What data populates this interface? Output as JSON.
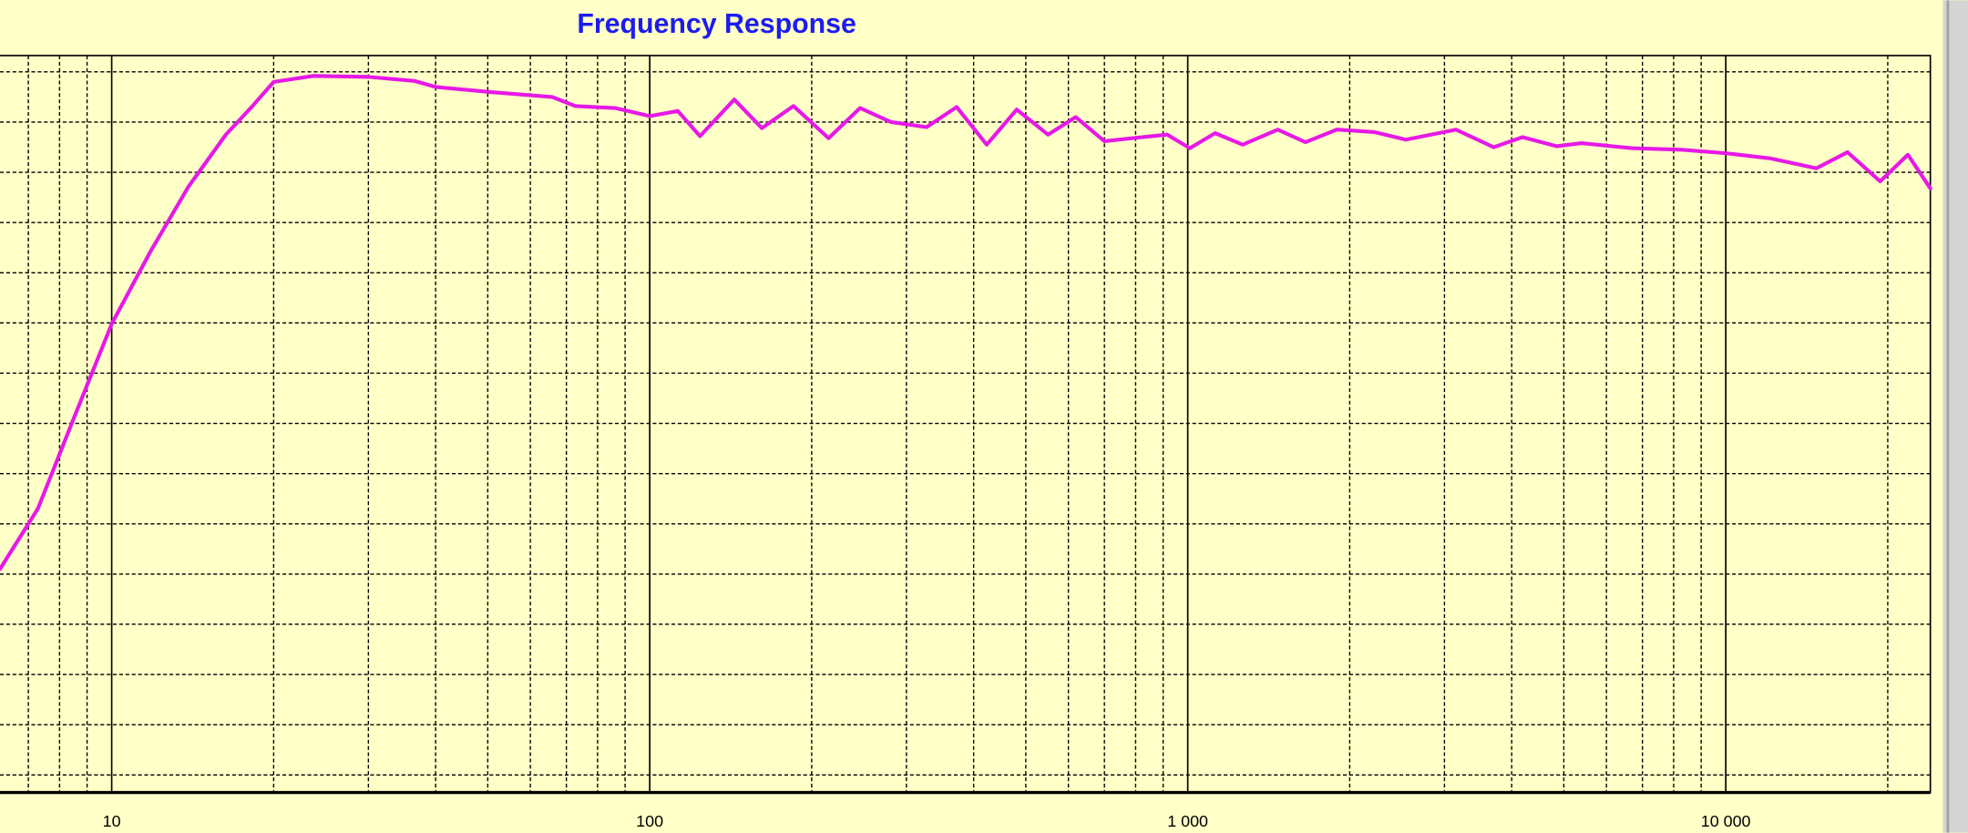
{
  "chart_data": {
    "type": "line",
    "title": "Frequency Response",
    "log_x": true,
    "grid": true,
    "background": "#ffffc8",
    "xlim": [
      6.2,
      24000
    ],
    "xticks": [
      10,
      100,
      {
        "value": 1000,
        "label": "1 000"
      },
      {
        "value": 10000,
        "label": "10 000"
      }
    ],
    "xminor": [
      7,
      8,
      9,
      20,
      30,
      40,
      50,
      60,
      70,
      80,
      90,
      200,
      300,
      400,
      500,
      600,
      700,
      800,
      900,
      2000,
      3000,
      4000,
      5000,
      6000,
      7000,
      8000,
      9000,
      20000
    ],
    "ylim": [
      28.25,
      101.625
    ],
    "ygrid": [
      30,
      35,
      40,
      45,
      50,
      55,
      60,
      65,
      70,
      75,
      80,
      85,
      90,
      95,
      100
    ],
    "x": [
      6.2,
      7.29,
      8.56,
      10,
      11.8,
      13.9,
      16.3,
      18.2,
      20,
      23.7,
      30,
      36.5,
      40,
      50.4,
      65.9,
      72.7,
      86.2,
      100,
      112.8,
      124,
      143.6,
      161.6,
      185,
      215,
      246,
      281,
      327,
      372,
      423,
      481,
      550,
      619,
      700,
      822,
      916,
      1009,
      1124,
      1265,
      1470,
      1655,
      1893,
      2224,
      2543,
      3152,
      3703,
      4190,
      4844,
      5395,
      6687,
      8285,
      10000,
      12066,
      14730,
      16840,
      19360,
      21800,
      24000
    ],
    "series": [
      {
        "color": "#e619e6",
        "values": [
          50.5,
          56.5,
          65.9,
          74.9,
          82.1,
          88.6,
          93.75,
          96.5,
          99,
          99.6,
          99.5,
          99.1,
          98.5,
          98,
          97.5,
          96.6,
          96.4,
          95.6,
          96.1,
          93.6,
          97.25,
          94.4,
          96.6,
          93.4,
          96.4,
          95,
          94.5,
          96.5,
          92.75,
          96.25,
          93.75,
          95.5,
          93.1,
          93.5,
          93.75,
          92.4,
          93.9,
          92.75,
          94.25,
          93,
          94.25,
          94,
          93.25,
          94.25,
          92.5,
          93.5,
          92.6,
          92.9,
          92.4,
          92.25,
          91.9,
          91.4,
          90.4,
          92,
          89.1,
          91.75,
          88.4
        ]
      }
    ]
  }
}
